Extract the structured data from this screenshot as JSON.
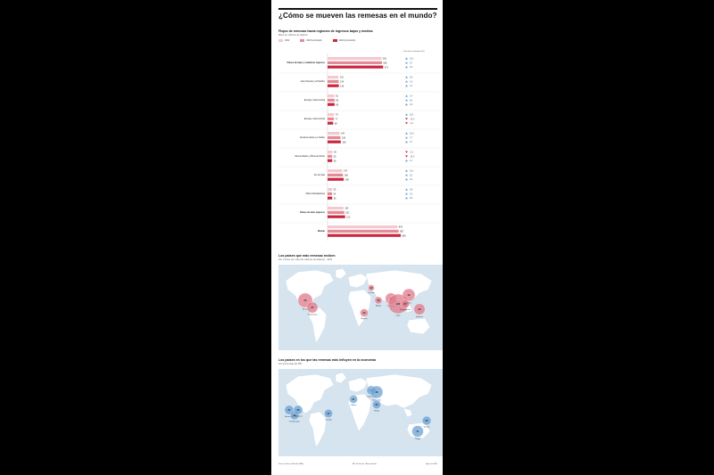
{
  "title": "¿Cómo se mueven las remesas en el mundo?",
  "chart_section": {
    "heading": "Flujos de remesas hacia regiones de ingresos bajos y medios",
    "subheading": "Miles de millones de dólares",
    "growth_header": "Tasa de crecimiento (%)",
    "legend": [
      "2022",
      "2023 (estimado)",
      "2024 (pronóstico)"
    ]
  },
  "chart_data": {
    "type": "bar",
    "categories": [
      "Países de bajos y medianos ingresos",
      "Asia Oriental y el Pacífico",
      "Europa y Asia Central",
      "Europa y Asia Central",
      "América Latina y el Caribe",
      "Oriente Medio y África del Norte",
      "Sur de Asia",
      "África Subsahariana",
      "Países de altos ingresos",
      "Mundo"
    ],
    "series": [
      {
        "name": "2022",
        "values": [
          651,
          132,
          81,
          79,
          144,
          60,
          176,
          55,
          192,
          843
        ]
      },
      {
        "name": "2023 (estimado)",
        "values": [
          656,
          134,
          85,
          77,
          156,
          55,
          186,
          54,
          202,
          857
        ]
      },
      {
        "name": "2024 (pronóstico)",
        "values": [
          671,
          136,
          85,
          68,
          160,
          56,
          195,
          56,
          212,
          883
        ]
      }
    ],
    "growth": [
      [
        "10.1",
        "0.7",
        "2.3"
      ],
      [
        "5.9",
        "1.0",
        "1.4"
      ],
      [
        "1.4",
        "5.0",
        "2.0"
      ],
      [
        "18.1",
        "-10.3",
        "-1.4"
      ],
      [
        "10.6",
        "7.7",
        "2.7"
      ],
      [
        "-3.3",
        "-15.3",
        "1.1"
      ],
      [
        "11.4",
        "5.2",
        "4.2"
      ],
      [
        "0.8",
        "0.3",
        "0.3"
      ],
      [
        "",
        "",
        ""
      ],
      [
        "",
        "",
        ""
      ]
    ],
    "bold_categories": [
      0,
      8,
      9
    ],
    "colors": {
      "2022": "#f2c9cf",
      "2023 (estimado)": "#e58a99",
      "2024 (pronóstico)": "#c8283e"
    }
  },
  "map1": {
    "heading": "Los países que más remesas reciben",
    "subheading": "Por montos (en miles de millones de dólares) · 2023",
    "bubbles": [
      {
        "value": "66",
        "label": "EEUU"
      },
      {
        "value": "37",
        "label": "Guatemala"
      },
      {
        "value": "12",
        "label": "Ucrania"
      },
      {
        "value": "16",
        "label": "Egipto"
      },
      {
        "value": "20",
        "label": "Nigeria"
      },
      {
        "value": "39",
        "label": "Pakistán"
      },
      {
        "value": "120",
        "label": "India"
      },
      {
        "value": "21",
        "label": "Bangladesh"
      },
      {
        "value": "49",
        "label": "China"
      },
      {
        "value": "39",
        "label": "Filipinas"
      }
    ],
    "colors": {
      "bubble": "#e07a8a",
      "land": "#ffffff",
      "water": "#d5e4ef"
    }
  },
  "map2": {
    "heading": "Los países en los que las remesas más influyen en la economía",
    "subheading": "Por porcentaje del PIB",
    "bubbles": [
      {
        "value": "27",
        "label": "Nicaragua"
      },
      {
        "value": "24",
        "label": "El Salvador"
      },
      {
        "value": "26",
        "label": "Honduras"
      },
      {
        "value": "22",
        "label": "Gambia"
      },
      {
        "value": "21",
        "label": "Líbano"
      },
      {
        "value": "26",
        "label": "Tayikistán"
      },
      {
        "value": "48",
        "label": "Kirguistán"
      },
      {
        "value": "22",
        "label": "Nepal"
      },
      {
        "value": "25",
        "label": "Samoa"
      },
      {
        "value": "41",
        "label": "Tonga"
      }
    ],
    "colors": {
      "bubble": "#6aa2d4",
      "land": "#ffffff",
      "water": "#d5e4ef"
    }
  },
  "footer": {
    "source": "Fuente: Banco Mundial (BM)",
    "credits": "PA / Proforme / Alvaro Rodz.",
    "agency": "Agencia EFE"
  }
}
